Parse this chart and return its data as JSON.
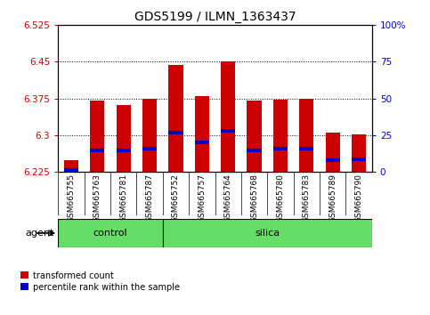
{
  "title": "GDS5199 / ILMN_1363437",
  "samples": [
    "GSM665755",
    "GSM665763",
    "GSM665781",
    "GSM665787",
    "GSM665752",
    "GSM665757",
    "GSM665764",
    "GSM665768",
    "GSM665780",
    "GSM665783",
    "GSM665789",
    "GSM665790"
  ],
  "bar_values": [
    6.248,
    6.37,
    6.362,
    6.375,
    6.443,
    6.38,
    6.45,
    6.37,
    6.372,
    6.375,
    6.305,
    6.302
  ],
  "percentile_values": [
    6.228,
    6.268,
    6.268,
    6.272,
    6.305,
    6.285,
    6.308,
    6.268,
    6.272,
    6.272,
    6.248,
    6.25
  ],
  "ymin": 6.225,
  "ymax": 6.525,
  "yticks": [
    6.225,
    6.3,
    6.375,
    6.45,
    6.525
  ],
  "ytick_labels": [
    "6.225",
    "6.3",
    "6.375",
    "6.45",
    "6.525"
  ],
  "right_yticks": [
    0,
    25,
    50,
    75,
    100
  ],
  "right_ytick_labels": [
    "0",
    "25",
    "50",
    "75",
    "100%"
  ],
  "control_count": 4,
  "silica_count": 8,
  "bar_color": "#CC0000",
  "percentile_color": "#0000CC",
  "bar_width": 0.55,
  "green_color": "#66DD66",
  "agent_label": "agent",
  "control_label": "control",
  "silica_label": "silica",
  "legend_red": "transformed count",
  "legend_blue": "percentile rank within the sample",
  "background_color": "#FFFFFF",
  "plot_bg_color": "#FFFFFF",
  "left_tick_color": "#CC0000",
  "right_tick_color": "#0000CC",
  "gray_bg": "#C8C8C8",
  "title_fontsize": 10,
  "tick_fontsize": 7.5,
  "sample_fontsize": 6.5,
  "label_fontsize": 8
}
